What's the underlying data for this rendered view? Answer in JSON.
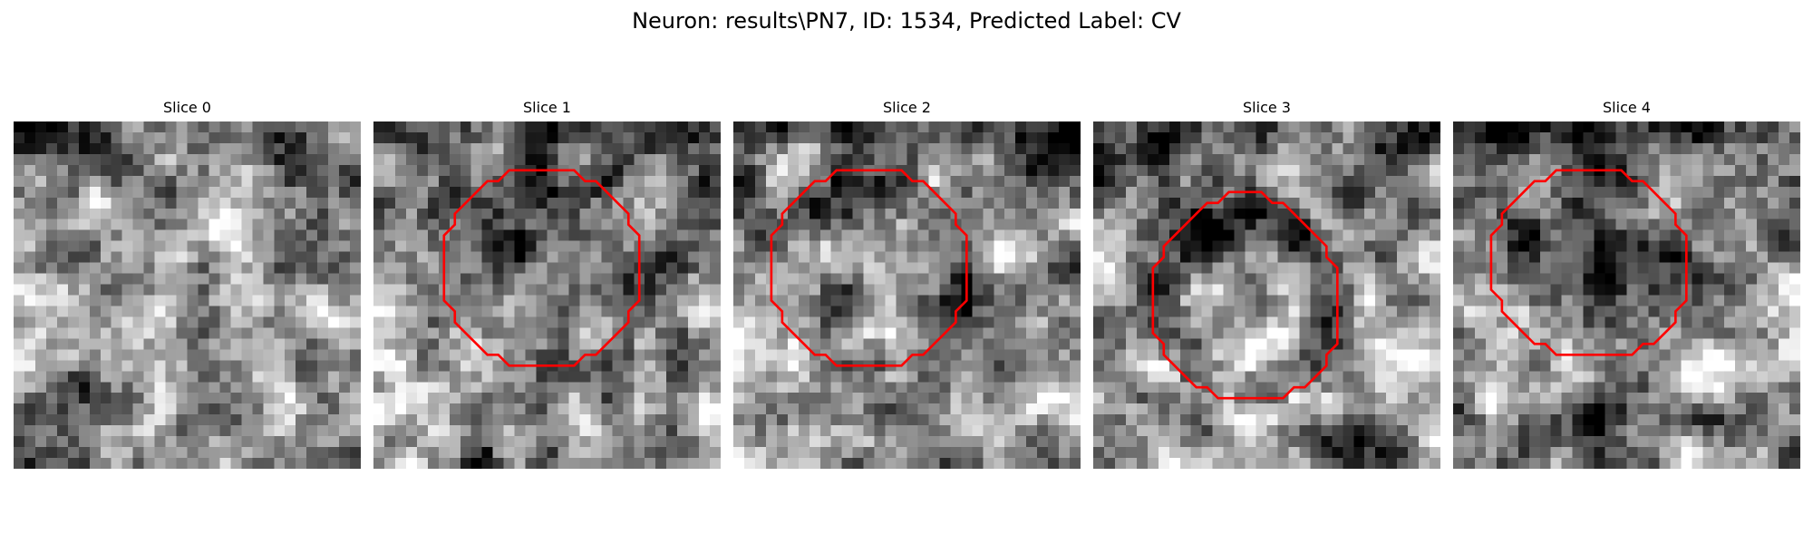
{
  "figure": {
    "title": "Neuron: results\\PN7, ID: 1534, Predicted Label: CV"
  },
  "panels": [
    {
      "title": "Slice 0",
      "has_contour": false,
      "seed": 11,
      "pattern": "none"
    },
    {
      "title": "Slice 1",
      "has_contour": true,
      "seed": 23,
      "pattern": "dark-center",
      "contour": [
        [
          15.5,
          4.5
        ],
        [
          18.5,
          4.5
        ],
        [
          19.5,
          5.5
        ],
        [
          20.5,
          5.5
        ],
        [
          21.5,
          6.5
        ],
        [
          22.5,
          7.5
        ],
        [
          23.5,
          8.5
        ],
        [
          23.5,
          9.5
        ],
        [
          24.5,
          10.5
        ],
        [
          24.5,
          13.5
        ],
        [
          24.5,
          16.5
        ],
        [
          23.5,
          17.5
        ],
        [
          23.5,
          18.5
        ],
        [
          22.5,
          19.5
        ],
        [
          21.5,
          20.5
        ],
        [
          20.5,
          21.5
        ],
        [
          19.5,
          21.5
        ],
        [
          18.5,
          22.5
        ],
        [
          15.5,
          22.5
        ],
        [
          12.5,
          22.5
        ],
        [
          11.5,
          21.5
        ],
        [
          10.5,
          21.5
        ],
        [
          9.5,
          20.5
        ],
        [
          8.5,
          19.5
        ],
        [
          7.5,
          18.5
        ],
        [
          7.5,
          17.5
        ],
        [
          6.5,
          16.5
        ],
        [
          6.5,
          13.5
        ],
        [
          6.5,
          10.5
        ],
        [
          7.5,
          9.5
        ],
        [
          7.5,
          8.5
        ],
        [
          8.5,
          7.5
        ],
        [
          9.5,
          6.5
        ],
        [
          10.5,
          5.5
        ],
        [
          11.5,
          5.5
        ],
        [
          12.5,
          4.5
        ]
      ]
    },
    {
      "title": "Slice 2",
      "has_contour": true,
      "seed": 37,
      "pattern": "bright-center",
      "contour": [
        [
          12.5,
          4.5
        ],
        [
          15.5,
          4.5
        ],
        [
          16.5,
          5.5
        ],
        [
          17.5,
          5.5
        ],
        [
          18.5,
          6.5
        ],
        [
          19.5,
          7.5
        ],
        [
          20.5,
          8.5
        ],
        [
          20.5,
          9.5
        ],
        [
          21.5,
          10.5
        ],
        [
          21.5,
          13.5
        ],
        [
          21.5,
          16.5
        ],
        [
          20.5,
          17.5
        ],
        [
          20.5,
          18.5
        ],
        [
          19.5,
          19.5
        ],
        [
          18.5,
          20.5
        ],
        [
          17.5,
          21.5
        ],
        [
          16.5,
          21.5
        ],
        [
          15.5,
          22.5
        ],
        [
          12.5,
          22.5
        ],
        [
          9.5,
          22.5
        ],
        [
          8.5,
          21.5
        ],
        [
          7.5,
          21.5
        ],
        [
          6.5,
          20.5
        ],
        [
          5.5,
          19.5
        ],
        [
          4.5,
          18.5
        ],
        [
          4.5,
          17.5
        ],
        [
          3.5,
          16.5
        ],
        [
          3.5,
          13.5
        ],
        [
          3.5,
          10.5
        ],
        [
          4.5,
          9.5
        ],
        [
          4.5,
          8.5
        ],
        [
          5.5,
          7.5
        ],
        [
          6.5,
          6.5
        ],
        [
          7.5,
          5.5
        ],
        [
          8.5,
          5.5
        ],
        [
          9.5,
          4.5
        ]
      ]
    },
    {
      "title": "Slice 3",
      "has_contour": true,
      "seed": 51,
      "pattern": "bright-center",
      "contour": [
        [
          12.5,
          6.5
        ],
        [
          15.5,
          6.5
        ],
        [
          16.5,
          7.5
        ],
        [
          17.5,
          7.5
        ],
        [
          18.5,
          8.5
        ],
        [
          19.5,
          9.5
        ],
        [
          20.5,
          10.5
        ],
        [
          21.5,
          11.5
        ],
        [
          21.5,
          12.5
        ],
        [
          22.5,
          13.5
        ],
        [
          22.5,
          17.5
        ],
        [
          22.5,
          20.5
        ],
        [
          21.5,
          21.5
        ],
        [
          21.5,
          22.5
        ],
        [
          20.5,
          23.5
        ],
        [
          19.5,
          24.5
        ],
        [
          18.5,
          24.5
        ],
        [
          17.5,
          25.5
        ],
        [
          14.5,
          25.5
        ],
        [
          11.5,
          25.5
        ],
        [
          10.5,
          24.5
        ],
        [
          9.5,
          24.5
        ],
        [
          8.5,
          23.5
        ],
        [
          7.5,
          22.5
        ],
        [
          6.5,
          21.5
        ],
        [
          6.5,
          20.5
        ],
        [
          5.5,
          19.5
        ],
        [
          5.5,
          16.5
        ],
        [
          5.5,
          13.5
        ],
        [
          6.5,
          12.5
        ],
        [
          6.5,
          11.5
        ],
        [
          7.5,
          10.5
        ],
        [
          8.5,
          9.5
        ],
        [
          9.5,
          8.5
        ],
        [
          10.5,
          7.5
        ],
        [
          11.5,
          7.5
        ]
      ]
    },
    {
      "title": "Slice 4",
      "has_contour": true,
      "seed": 67,
      "pattern": "dark-center",
      "contour": [
        [
          12.5,
          4.5
        ],
        [
          15.5,
          4.5
        ],
        [
          16.5,
          5.5
        ],
        [
          17.5,
          5.5
        ],
        [
          18.5,
          6.5
        ],
        [
          19.5,
          7.5
        ],
        [
          20.5,
          8.5
        ],
        [
          20.5,
          9.5
        ],
        [
          21.5,
          10.5
        ],
        [
          21.5,
          13.5
        ],
        [
          21.5,
          16.5
        ],
        [
          20.5,
          17.5
        ],
        [
          20.5,
          18.5
        ],
        [
          19.5,
          19.5
        ],
        [
          18.5,
          20.5
        ],
        [
          17.5,
          20.5
        ],
        [
          16.5,
          21.5
        ],
        [
          15.5,
          21.5
        ],
        [
          12.5,
          21.5
        ],
        [
          9.5,
          21.5
        ],
        [
          8.5,
          20.5
        ],
        [
          7.5,
          20.5
        ],
        [
          6.5,
          19.5
        ],
        [
          5.5,
          18.5
        ],
        [
          4.5,
          17.5
        ],
        [
          4.5,
          16.5
        ],
        [
          3.5,
          15.5
        ],
        [
          3.5,
          13.5
        ],
        [
          3.5,
          10.5
        ],
        [
          4.5,
          9.5
        ],
        [
          4.5,
          8.5
        ],
        [
          5.5,
          7.5
        ],
        [
          6.5,
          6.5
        ],
        [
          7.5,
          5.5
        ],
        [
          8.5,
          5.5
        ],
        [
          9.5,
          4.5
        ]
      ]
    }
  ],
  "style": {
    "contour_color": "#ff0000",
    "colormap": "gray"
  }
}
